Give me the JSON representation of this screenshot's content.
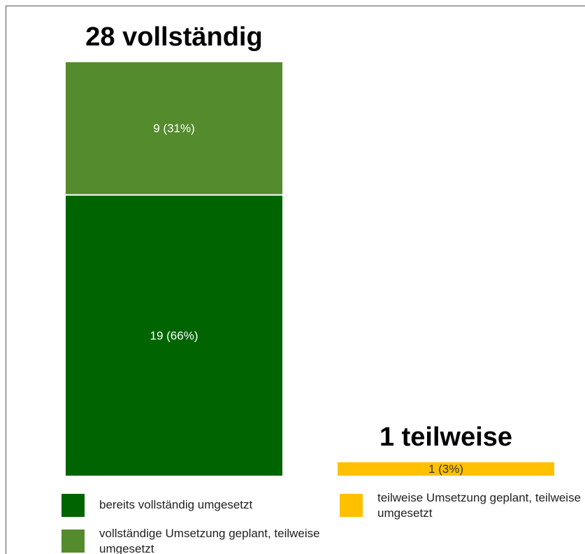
{
  "chart_data": {
    "type": "bar",
    "stacked": true,
    "categories": [
      "28 vollständig",
      "1 teilweise"
    ],
    "series": [
      {
        "name": "bereits vollständig umgesetzt",
        "color": "#006400",
        "label_color": "#ffffff",
        "values": [
          19,
          null
        ],
        "value_labels": [
          "19 (66%)",
          null
        ]
      },
      {
        "name": "vollständige Umsetzung geplant, teilweise umgesetzt",
        "color": "#538b2d",
        "label_color": "#ffffff",
        "values": [
          9,
          null
        ],
        "value_labels": [
          "9 (31%)",
          null
        ]
      },
      {
        "name": "teilweise Umsetzung geplant, teilweise umgesetzt",
        "color": "#ffc000",
        "label_color": "#333333",
        "values": [
          null,
          1
        ],
        "value_labels": [
          null,
          "1 (3%)"
        ]
      }
    ]
  }
}
